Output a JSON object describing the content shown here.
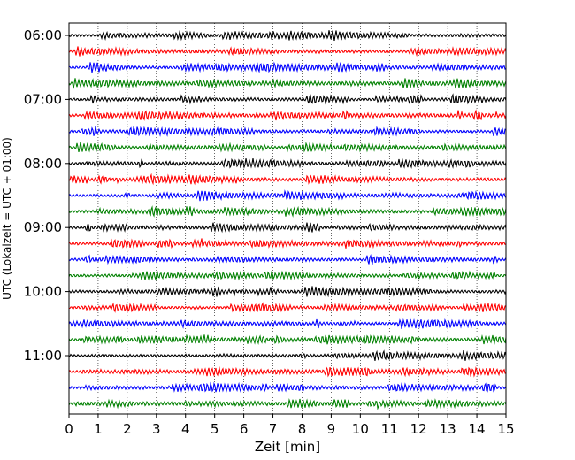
{
  "chart_data": {
    "type": "line",
    "title": "",
    "xlabel": "Zeit  [min]",
    "ylabel": "UTC (Lokalzeit = UTC + 01:00)",
    "xlim": [
      0,
      15
    ],
    "x_ticks": [
      "0",
      "1",
      "2",
      "3",
      "4",
      "5",
      "6",
      "7",
      "8",
      "9",
      "10",
      "11",
      "12",
      "13",
      "14",
      "15"
    ],
    "y_ticks": [
      "06:00",
      "07:00",
      "08:00",
      "09:00",
      "10:00",
      "11:00"
    ],
    "rows_per_hour": 4,
    "row_count": 24,
    "row_minutes": 15,
    "start_time": "06:00",
    "colors": [
      "#000000",
      "#ff0000",
      "#0000ff",
      "#008000"
    ],
    "grid": "vertical-dotted",
    "legend": "none",
    "trace": "seismogram"
  }
}
